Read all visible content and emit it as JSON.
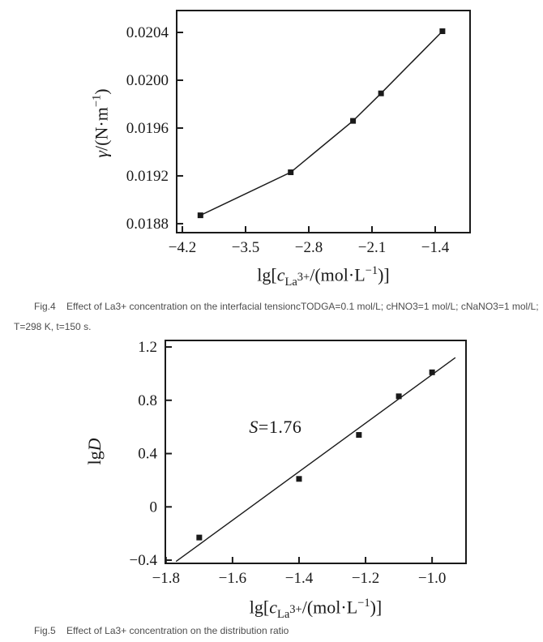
{
  "page": {
    "background": "#ffffff",
    "ink_color": "#1a1a1a",
    "caption_color": "#4d4d4d"
  },
  "figure4": {
    "caption_lines": [
      "Fig.4    Effect of La3+ concentration on the interfacial tensioncTODGA=0.1 mol/L; cHNO3=1 mol/L; cNaNO3=1 mol/L;",
      "T=298 K, t=150 s."
    ]
  },
  "figure5": {
    "caption": "Fig.5    Effect of La3+ concentration on the distribution ratio"
  },
  "chart_data": [
    {
      "id": "fig4",
      "type": "line",
      "title": "",
      "xlabel_text": "lg[cLa3+/(mol·L−1)]",
      "ylabel_text": "γ/(N·m−1)",
      "xlabel_parts": [
        {
          "text": "lg[",
          "style": "normal"
        },
        {
          "text": "c",
          "style": "italic"
        },
        {
          "text": "La",
          "style": "sub"
        },
        {
          "text": "3+",
          "style": "subsup"
        },
        {
          "text": "/(mol·L",
          "style": "normal"
        },
        {
          "text": "−1",
          "style": "sup"
        },
        {
          "text": ")]",
          "style": "normal"
        }
      ],
      "ylabel_parts": [
        {
          "text": "γ",
          "style": "italic"
        },
        {
          "text": "/(N·m",
          "style": "normal"
        },
        {
          "text": "−1",
          "style": "sup"
        },
        {
          "text": ")",
          "style": "normal"
        }
      ],
      "x": [
        -4.0,
        -3.0,
        -2.31,
        -2.0,
        -1.32
      ],
      "y": [
        0.01887,
        0.01923,
        0.01966,
        0.01989,
        0.02041
      ],
      "xticks": [
        -4.2,
        -3.5,
        -2.8,
        -2.1,
        -1.4
      ],
      "xtick_labels": [
        "−4.2",
        "−3.5",
        "−2.8",
        "−2.1",
        "−1.4"
      ],
      "yticks": [
        0.0188,
        0.0192,
        0.0196,
        0.02,
        0.0204
      ],
      "ytick_labels": [
        "0.0188",
        "0.0192",
        "0.0196",
        "0.0200",
        "0.0204"
      ],
      "xlim": [
        -4.263,
        -1.014
      ],
      "ylim": [
        0.018725,
        0.020583
      ],
      "grid": false,
      "legend": null,
      "marker": "square"
    },
    {
      "id": "fig5",
      "type": "scatter",
      "title": "",
      "xlabel_text": "lg[cLa3+/(mol·L−1)]",
      "ylabel_text": "lgD",
      "xlabel_parts": [
        {
          "text": "lg[",
          "style": "normal"
        },
        {
          "text": "c",
          "style": "italic"
        },
        {
          "text": "La",
          "style": "sub"
        },
        {
          "text": "3+",
          "style": "subsup"
        },
        {
          "text": "/(mol·L",
          "style": "normal"
        },
        {
          "text": "−1",
          "style": "sup"
        },
        {
          "text": ")]",
          "style": "normal"
        }
      ],
      "ylabel_parts": [
        {
          "text": "lg",
          "style": "normal"
        },
        {
          "text": "D",
          "style": "italic"
        }
      ],
      "x": [
        -1.7,
        -1.4,
        -1.22,
        -1.1,
        -1.0
      ],
      "y": [
        -0.23,
        0.21,
        0.54,
        0.83,
        1.01
      ],
      "fit_line": {
        "x1": -1.77,
        "y1": -0.41,
        "x2": -0.93,
        "y2": 1.12
      },
      "annotation": {
        "text": "S=1.76",
        "parts": [
          {
            "text": "S",
            "style": "italic"
          },
          {
            "text": "=1.76",
            "style": "normal"
          }
        ],
        "x": -1.55,
        "y": 0.6
      },
      "xticks": [
        -1.8,
        -1.6,
        -1.4,
        -1.2,
        -1.0
      ],
      "xtick_labels": [
        "−1.8",
        "−1.6",
        "−1.4",
        "−1.2",
        "−1.0"
      ],
      "yticks": [
        -0.4,
        0,
        0.4,
        0.8,
        1.2
      ],
      "ytick_labels": [
        "−0.4",
        "0",
        "0.4",
        "0.8",
        "1.2"
      ],
      "xlim": [
        -1.802,
        -0.898
      ],
      "ylim": [
        -0.424,
        1.249
      ],
      "grid": false,
      "legend": null,
      "marker": "square"
    }
  ]
}
